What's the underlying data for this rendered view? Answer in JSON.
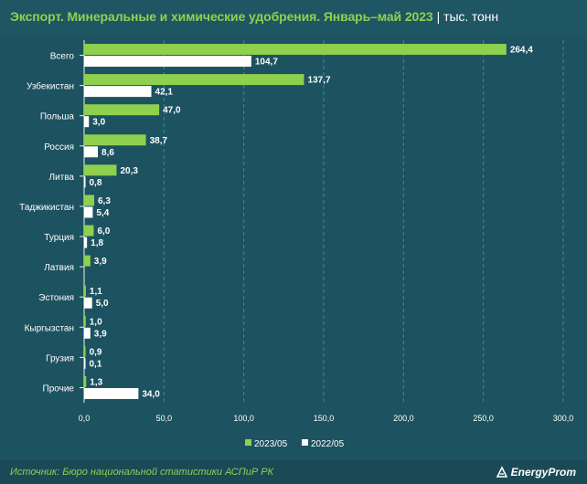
{
  "title": {
    "main": "Экспорт. Минеральные и химические удобрения. Январь–май 2023",
    "separator": "|",
    "unit": "тыс. тонн"
  },
  "source": "Источник: Бюро национальной статистики АСПиР РК",
  "logo": "EnergyProm",
  "colors": {
    "background": "#1f5663",
    "series_2023": "#8fd14f",
    "series_2022": "#ffffff",
    "title": "#8fd14f",
    "gridline": "#3f8a96"
  },
  "chart_data": {
    "type": "bar",
    "orientation": "horizontal",
    "categories": [
      "Всего",
      "Узбекистан",
      "Польша",
      "Россия",
      "Литва",
      "Таджикистан",
      "Турция",
      "Латвия",
      "Эстония",
      "Кыргызстан",
      "Грузия",
      "Прочие"
    ],
    "series": [
      {
        "name": "2023/05",
        "color": "#8fd14f",
        "values": [
          264.4,
          137.7,
          47.0,
          38.7,
          20.3,
          6.3,
          6.0,
          3.9,
          1.1,
          1.0,
          0.9,
          1.3
        ],
        "labels": [
          "264,4",
          "137,7",
          "47,0",
          "38,7",
          "20,3",
          "6,3",
          "6,0",
          "3,9",
          "1,1",
          "1,0",
          "0,9",
          "1,3"
        ]
      },
      {
        "name": "2022/05",
        "color": "#ffffff",
        "values": [
          104.7,
          42.1,
          3.0,
          8.6,
          0.8,
          5.4,
          1.8,
          null,
          5.0,
          3.9,
          0.1,
          34.0
        ],
        "labels": [
          "104,7",
          "42,1",
          "3,0",
          "8,6",
          "0,8",
          "5,4",
          "1,8",
          "",
          "5,0",
          "3,9",
          "0,1",
          "34,0"
        ]
      }
    ],
    "xlim": [
      0,
      300
    ],
    "xticks": [
      0,
      50,
      100,
      150,
      200,
      250,
      300
    ],
    "xtick_labels": [
      "0,0",
      "50,0",
      "100,0",
      "150,0",
      "200,0",
      "250,0",
      "300,0"
    ],
    "grid": "vertical dashed",
    "legend_position": "bottom"
  }
}
